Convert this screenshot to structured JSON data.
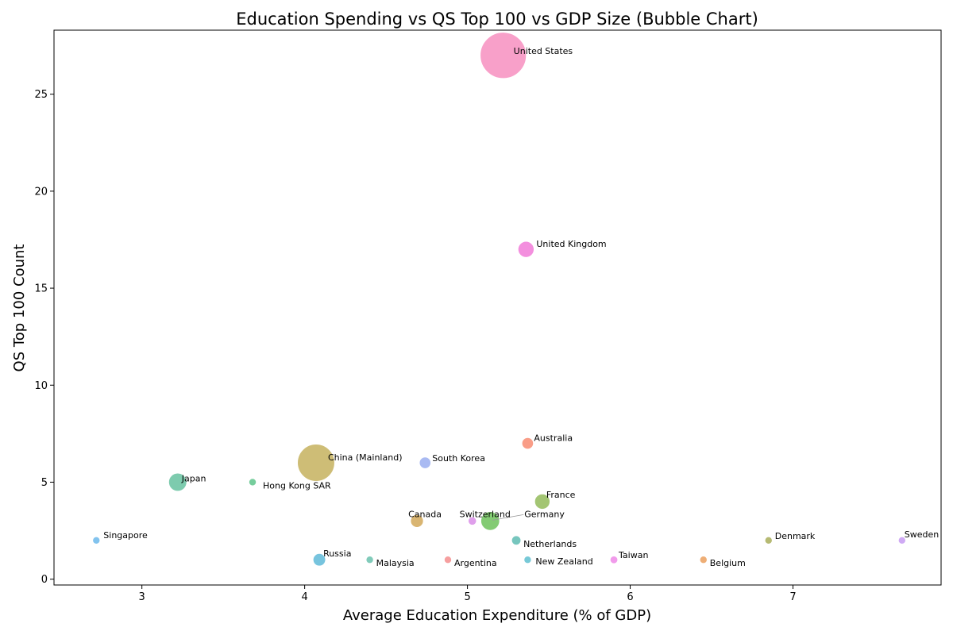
{
  "chart_data": {
    "type": "scatter",
    "title": "Education Spending vs QS Top 100 vs GDP Size (Bubble Chart)",
    "xlabel": "Average Education Expenditure (% of GDP)",
    "ylabel": "QS Top 100 Count",
    "xlim": [
      2.46,
      7.91
    ],
    "ylim": [
      -0.3,
      28.3
    ],
    "xticks": [
      3,
      4,
      5,
      6,
      7
    ],
    "yticks": [
      0,
      5,
      10,
      15,
      20,
      25
    ],
    "grid": false,
    "legend": "none",
    "points": [
      {
        "label": "United States",
        "x": 5.22,
        "y": 27,
        "gdp": 27.4,
        "color": "#f78fc0"
      },
      {
        "label": "United Kingdom",
        "x": 5.36,
        "y": 17,
        "gdp": 3.3,
        "color": "#f17bd8"
      },
      {
        "label": "Australia",
        "x": 5.37,
        "y": 7,
        "gdp": 1.7,
        "color": "#f88c72"
      },
      {
        "label": "China (Mainland)",
        "x": 4.07,
        "y": 6,
        "gdp": 17.8,
        "color": "#c6b15e"
      },
      {
        "label": "South Korea",
        "x": 4.74,
        "y": 6,
        "gdp": 1.7,
        "color": "#9aaef0"
      },
      {
        "label": "Japan",
        "x": 3.22,
        "y": 5,
        "gdp": 4.2,
        "color": "#66c2a0"
      },
      {
        "label": "Hong Kong SAR",
        "x": 3.68,
        "y": 5,
        "gdp": 0.38,
        "color": "#5ec48b"
      },
      {
        "label": "France",
        "x": 5.46,
        "y": 4,
        "gdp": 3.0,
        "color": "#93bb5a"
      },
      {
        "label": "Canada",
        "x": 4.69,
        "y": 3,
        "gdp": 2.1,
        "color": "#d2a859"
      },
      {
        "label": "Switzerland",
        "x": 5.03,
        "y": 3,
        "gdp": 0.88,
        "color": "#d98ee8"
      },
      {
        "label": "Germany",
        "x": 5.14,
        "y": 3,
        "gdp": 4.5,
        "color": "#6dc25a"
      },
      {
        "label": "Singapore",
        "x": 2.72,
        "y": 2,
        "gdp": 0.5,
        "color": "#6cb8eb"
      },
      {
        "label": "Netherlands",
        "x": 5.3,
        "y": 2,
        "gdp": 1.1,
        "color": "#5fbcb3"
      },
      {
        "label": "Denmark",
        "x": 6.85,
        "y": 2,
        "gdp": 0.4,
        "color": "#a9ae5b"
      },
      {
        "label": "Sweden",
        "x": 7.67,
        "y": 2,
        "gdp": 0.6,
        "color": "#c79bf2"
      },
      {
        "label": "Russia",
        "x": 4.09,
        "y": 1,
        "gdp": 2.0,
        "color": "#5fbad8"
      },
      {
        "label": "Malaysia",
        "x": 4.4,
        "y": 1,
        "gdp": 0.4,
        "color": "#6bc2ae"
      },
      {
        "label": "Argentina",
        "x": 4.88,
        "y": 1,
        "gdp": 0.6,
        "color": "#f58e8e"
      },
      {
        "label": "New Zealand",
        "x": 5.37,
        "y": 1,
        "gdp": 0.25,
        "color": "#5fbfd0"
      },
      {
        "label": "Taiwan",
        "x": 5.9,
        "y": 1,
        "gdp": 0.75,
        "color": "#ef8ae8"
      },
      {
        "label": "Belgium",
        "x": 6.45,
        "y": 1,
        "gdp": 0.63,
        "color": "#eba05e"
      }
    ]
  }
}
